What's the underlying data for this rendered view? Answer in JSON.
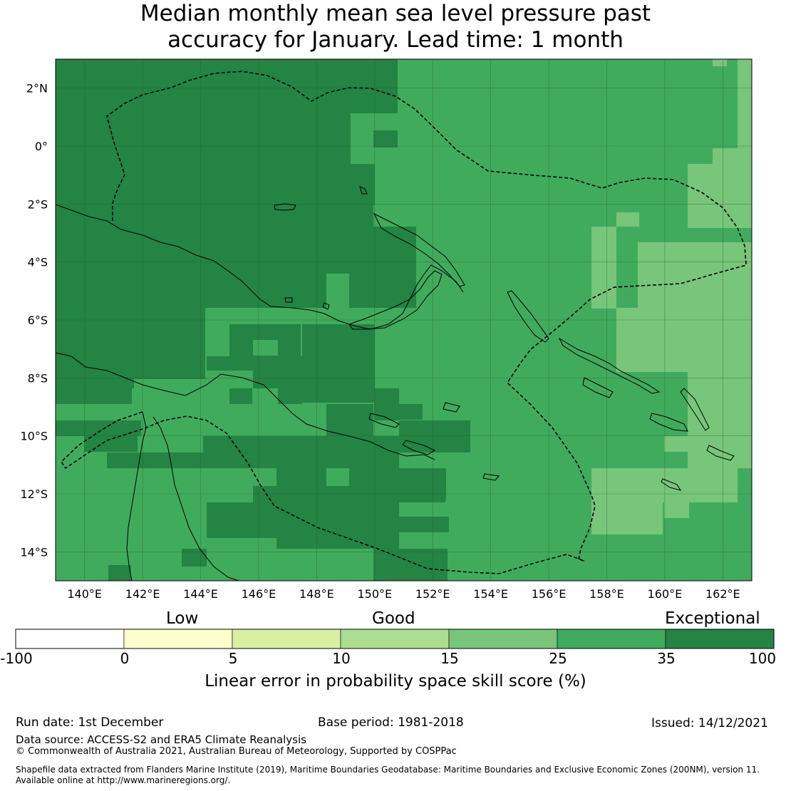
{
  "title": {
    "line1": "Median monthly mean sea level pressure past",
    "line2": "accuracy for January. Lead time: 1 month"
  },
  "map": {
    "lon_range": [
      139,
      163
    ],
    "lat_range": [
      -15,
      3
    ],
    "lon_ticks": [
      {
        "value": 140,
        "label": "140°E"
      },
      {
        "value": 142,
        "label": "142°E"
      },
      {
        "value": 144,
        "label": "144°E"
      },
      {
        "value": 146,
        "label": "146°E"
      },
      {
        "value": 148,
        "label": "148°E"
      },
      {
        "value": 150,
        "label": "150°E"
      },
      {
        "value": 152,
        "label": "152°E"
      },
      {
        "value": 154,
        "label": "154°E"
      },
      {
        "value": 156,
        "label": "156°E"
      },
      {
        "value": 158,
        "label": "158°E"
      },
      {
        "value": 160,
        "label": "160°E"
      },
      {
        "value": 162,
        "label": "162°E"
      }
    ],
    "lat_ticks": [
      {
        "value": 2,
        "label": "2°N"
      },
      {
        "value": 0,
        "label": "0°"
      },
      {
        "value": -2,
        "label": "2°S"
      },
      {
        "value": -4,
        "label": "4°S"
      },
      {
        "value": -6,
        "label": "6°S"
      },
      {
        "value": -8,
        "label": "8°S"
      },
      {
        "value": -10,
        "label": "10°S"
      },
      {
        "value": -12,
        "label": "12°S"
      },
      {
        "value": -14,
        "label": "14°S"
      }
    ],
    "colors": {
      "exceptional": "#238443",
      "very_good": "#41ab5d",
      "good": "#78c679",
      "fair": "#addd8e",
      "low": "#d9f0a3",
      "poor": "#ffffcc",
      "none": "#ffffff",
      "grid": "#2b5e2b",
      "coast": "#000000",
      "eez": "#000000"
    }
  },
  "legend": {
    "categories": [
      "Low",
      "Good",
      "Exceptional"
    ],
    "bins": [
      {
        "from": -100,
        "to": 0,
        "color": "#ffffff"
      },
      {
        "from": 0,
        "to": 5,
        "color": "#ffffcc"
      },
      {
        "from": 5,
        "to": 10,
        "color": "#d9f0a3"
      },
      {
        "from": 10,
        "to": 15,
        "color": "#addd8e"
      },
      {
        "from": 15,
        "to": 25,
        "color": "#78c679"
      },
      {
        "from": 25,
        "to": 35,
        "color": "#41ab5d"
      },
      {
        "from": 35,
        "to": 100,
        "color": "#238443"
      }
    ],
    "tick_labels": [
      "-100",
      "0",
      "5",
      "10",
      "15",
      "25",
      "35",
      "100"
    ],
    "title": "Linear error in probability space skill score (%)"
  },
  "footer": {
    "run_date": "Run date: 1st December",
    "base_period": "Base period: 1981-2018",
    "issued": "Issued: 14/12/2021",
    "data_source": "Data source: ACCESS-S2 and ERA5 Climate Reanalysis",
    "copyright": "© Commonwealth of Australia 2021, Australian Bureau of Meteorology, Supported by COSPPac",
    "shapefile_line1": "Shapefile data extracted from Flanders Marine Institute (2019), Maritime Boundaries Geodatabase: Maritime Boundaries and Exclusive Economic Zones (200NM), version 11.",
    "shapefile_line2": "Available online at http://www.marineregions.org/."
  }
}
